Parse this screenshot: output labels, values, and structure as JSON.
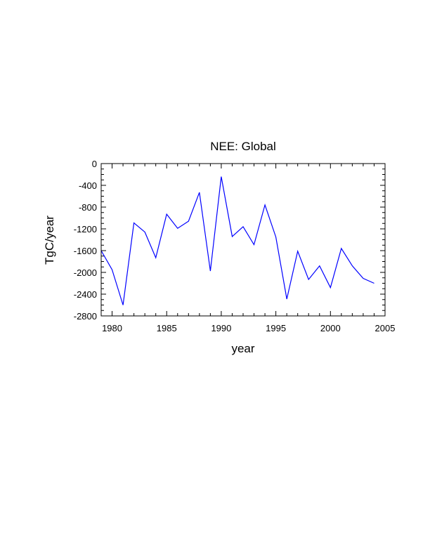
{
  "chart_data": {
    "type": "line",
    "title": "NEE: Global",
    "xlabel": "year",
    "ylabel": "TgC/year",
    "xlim": [
      1979,
      2005
    ],
    "ylim": [
      -2800,
      0
    ],
    "xticks": [
      1980,
      1985,
      1990,
      1995,
      2000,
      2005
    ],
    "yticks": [
      0,
      -400,
      -800,
      -1200,
      -1600,
      -2000,
      -2400,
      -2800
    ],
    "grid": false,
    "series": [
      {
        "name": "NEE",
        "color": "#0000ff",
        "x": [
          1979,
          1980,
          1981,
          1982,
          1983,
          1984,
          1985,
          1986,
          1987,
          1988,
          1989,
          1990,
          1991,
          1992,
          1993,
          1994,
          1995,
          1996,
          1997,
          1998,
          1999,
          2000,
          2001,
          2002,
          2003,
          2004
        ],
        "values": [
          -1600,
          -1950,
          -2600,
          -1090,
          -1260,
          -1730,
          -930,
          -1190,
          -1060,
          -530,
          -1975,
          -240,
          -1340,
          -1160,
          -1490,
          -760,
          -1350,
          -2490,
          -1610,
          -2130,
          -1880,
          -2280,
          -1560,
          -1880,
          -2110,
          -2200
        ]
      }
    ]
  }
}
